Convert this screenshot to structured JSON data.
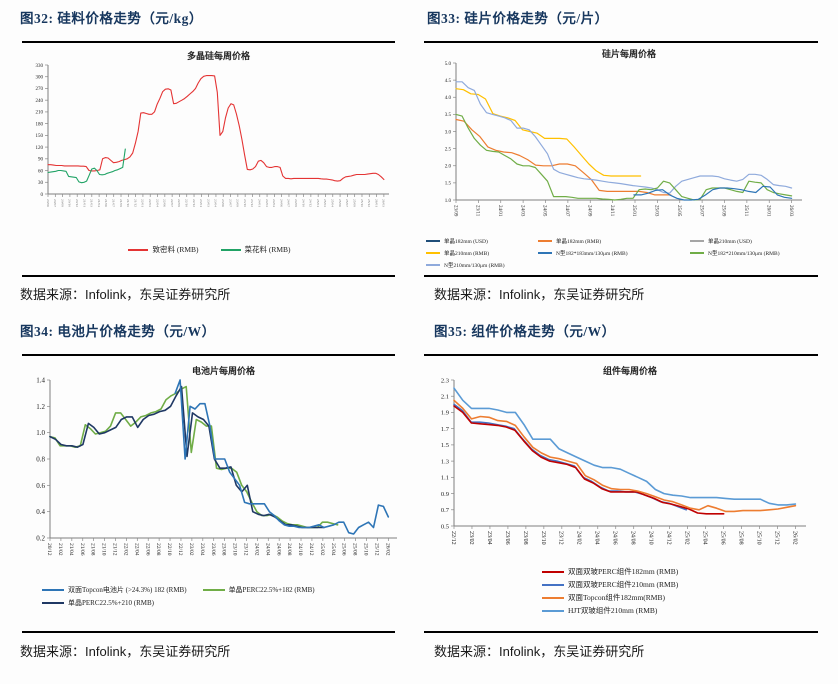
{
  "figures": [
    {
      "heading": "图32: 硅料价格走势（元/kg）",
      "source": {
        "prefix": "数据来源：",
        "brand": "Infolink",
        "suffix": "，东吴证券研究所"
      }
    },
    {
      "heading": "图33: 硅片价格走势（元/片）",
      "source": {
        "prefix": "数据来源：",
        "brand": "Infolink",
        "suffix": "，东吴证券研究所"
      }
    },
    {
      "heading": "图34: 电池片价格走势（元/W）",
      "source": {
        "prefix": "数据来源：",
        "brand": "Infolink",
        "suffix": "，东吴证券研究所"
      }
    },
    {
      "heading": "图35: 组件价格走势（元/W）",
      "source": {
        "prefix": "数据来源：",
        "brand": "Infolink",
        "suffix": "，东吴证券研究所"
      }
    }
  ],
  "colors": {
    "heading": "#17375E",
    "rule": "#000000",
    "axis": "#808080"
  },
  "chart_data": [
    {
      "type": "line",
      "title": "多晶硅每周价格",
      "ylim": [
        0,
        330
      ],
      "ystep": 30,
      "xlabels": [
        "20/06",
        "20/07",
        "20/09",
        "20/10",
        "20/12",
        "21/01",
        "21/03",
        "21/04",
        "21/06",
        "21/07",
        "21/09",
        "21/10",
        "21/12",
        "22/01",
        "22/03",
        "22/04",
        "22/06",
        "22/07",
        "22/09",
        "22/10",
        "22/12",
        "23/01",
        "23/03",
        "23/04",
        "23/06",
        "23/07",
        "23/09",
        "23/10",
        "23/12",
        "24/01",
        "24/03",
        "24/04",
        "24/06",
        "24/07",
        "24/09",
        "24/10",
        "24/12",
        "25/01",
        "25/03",
        "25/04",
        "25/06",
        "25/07",
        "25/09",
        "25/10",
        "25/12",
        "26/01",
        "26/03"
      ],
      "legend": [
        {
          "label": "致密料 (RMB)",
          "color": "#E43434"
        },
        {
          "label": "菜花料 (RMB)",
          "color": "#21A366"
        }
      ],
      "series": [
        {
          "name": "致密料 (RMB)",
          "color": "#E43434",
          "span": [
            0,
            1
          ],
          "values": [
            75,
            75,
            74,
            73,
            73,
            73,
            72,
            72,
            72,
            72,
            72,
            72,
            71,
            71,
            70,
            60,
            59,
            59,
            60,
            62,
            90,
            93,
            92,
            86,
            80,
            81,
            83,
            86,
            88,
            90,
            95,
            105,
            130,
            160,
            207,
            208,
            206,
            204,
            204,
            210,
            230,
            245,
            262,
            268,
            269,
            266,
            231,
            232,
            236,
            240,
            244,
            250,
            256,
            262,
            270,
            284,
            295,
            301,
            303,
            303,
            303,
            302,
            260,
            150,
            160,
            195,
            220,
            231,
            228,
            205,
            175,
            140,
            100,
            63,
            62,
            64,
            70,
            84,
            86,
            80,
            70,
            68,
            68,
            70,
            70,
            68,
            46,
            40,
            40,
            39,
            40,
            40,
            40,
            40,
            40,
            40,
            40,
            40,
            40,
            40,
            39,
            38,
            38,
            37,
            36,
            34,
            33,
            34,
            40,
            44,
            45,
            46,
            48,
            50,
            50,
            50,
            50,
            51,
            52,
            53,
            53,
            50,
            44,
            37
          ]
        },
        {
          "name": "菜花料 (RMB)",
          "color": "#21A366",
          "span": [
            0,
            0.23
          ],
          "values": [
            55,
            56,
            57,
            58,
            60,
            60,
            59,
            58,
            45,
            44,
            43,
            42,
            31,
            29,
            30,
            33,
            48,
            64,
            66,
            60,
            50,
            49,
            50,
            53,
            55,
            57,
            60,
            62,
            65,
            68,
            115
          ]
        }
      ]
    },
    {
      "type": "line",
      "title": "硅片每周价格",
      "ylim": [
        1.0,
        5.0
      ],
      "ystep": 0.5,
      "xlabels": [
        "23/09",
        "23/11",
        "24/01",
        "24/03",
        "24/05",
        "24/07",
        "24/09",
        "24/11",
        "25/01",
        "25/03",
        "25/05",
        "25/07",
        "25/09",
        "25/11",
        "26/01",
        "26/03"
      ],
      "legend": [
        {
          "label": "单晶182mm (USD)",
          "color": "#1F4E79"
        },
        {
          "label": "单晶182mm (RMB)",
          "color": "#ED7D31"
        },
        {
          "label": "单晶210mm (USD)",
          "color": "#A5A5A5"
        },
        {
          "label": "单晶210mm (RMB)",
          "color": "#FFC000"
        },
        {
          "label": "N型182*183mm/130μm (RMB)",
          "color": "#2E75B6"
        },
        {
          "label": "N型182*210mm/130μm (RMB)",
          "color": "#70AD47"
        },
        {
          "label": "N型210mm/130μm (RMB)",
          "color": "#8FAADC"
        }
      ],
      "series": [
        {
          "name": "单晶182mm (USD)",
          "color": "#1F4E79",
          "span": [
            0,
            1
          ],
          "values": []
        },
        {
          "name": "单晶210mm (USD)",
          "color": "#A5A5A5",
          "span": [
            0,
            1
          ],
          "values": []
        },
        {
          "name": "单晶210mm (RMB)",
          "color": "#FFC000",
          "span": [
            0,
            0.55
          ],
          "values": [
            4.25,
            4.22,
            4.1,
            4.08,
            3.95,
            3.52,
            3.45,
            3.4,
            3.32,
            3.05,
            3.0,
            2.95,
            2.8,
            2.8,
            2.8,
            2.78,
            2.55,
            2.3,
            2.05,
            1.85,
            1.72,
            1.7,
            1.7,
            1.7,
            1.7,
            1.7
          ]
        },
        {
          "name": "单晶182mm (RMB)",
          "color": "#ED7D31",
          "span": [
            0,
            0.64
          ],
          "values": [
            3.35,
            3.3,
            3.05,
            2.85,
            2.55,
            2.45,
            2.4,
            2.38,
            2.3,
            2.18,
            2.02,
            2.0,
            2.0,
            2.05,
            2.05,
            2.0,
            1.8,
            1.6,
            1.28,
            1.25,
            1.25,
            1.25,
            1.25,
            1.25,
            1.22,
            1.15,
            1.15,
            1.15
          ]
        },
        {
          "name": "N型210mm/130μm (RMB)",
          "color": "#8FAADC",
          "span": [
            0,
            1
          ],
          "values": [
            4.45,
            4.45,
            4.28,
            4.2,
            3.8,
            3.55,
            3.5,
            3.45,
            3.4,
            3.32,
            3.1,
            3.1,
            3.05,
            2.85,
            2.6,
            2.35,
            1.9,
            1.8,
            1.75,
            1.7,
            1.65,
            1.62,
            1.6,
            1.58,
            1.55,
            1.52,
            1.5,
            1.48,
            1.45,
            1.42,
            1.4,
            1.38,
            1.35,
            1.3,
            1.22,
            1.2,
            1.4,
            1.55,
            1.6,
            1.65,
            1.7,
            1.7,
            1.7,
            1.68,
            1.62,
            1.58,
            1.55,
            1.6,
            1.75,
            1.75,
            1.72,
            1.6,
            1.45,
            1.42,
            1.4,
            1.35
          ]
        },
        {
          "name": "N型182*210mm/130μm (RMB)",
          "color": "#70AD47",
          "span": [
            0,
            1
          ],
          "values": [
            3.5,
            3.45,
            3.1,
            2.8,
            2.6,
            2.45,
            2.42,
            2.4,
            2.3,
            2.2,
            2.05,
            2.0,
            2.0,
            1.95,
            1.75,
            1.55,
            1.1,
            1.1,
            1.1,
            1.08,
            1.05,
            1.05,
            1.05,
            1.05,
            1.03,
            1.02,
            1.0,
            1.02,
            1.05,
            1.05,
            1.3,
            1.32,
            1.3,
            1.35,
            1.55,
            1.5,
            1.3,
            1.1,
            1.05,
            1.0,
            1.02,
            1.3,
            1.35,
            1.35,
            1.35,
            1.3,
            1.25,
            1.22,
            1.55,
            1.52,
            1.5,
            1.3,
            1.22,
            1.18,
            1.15,
            1.12
          ]
        },
        {
          "name": "N型182*183mm/130μm (RMB)",
          "color": "#2E75B6",
          "span": [
            0.53,
            1
          ],
          "values": [
            1.15,
            1.15,
            1.2,
            1.28,
            1.3,
            1.15,
            1.05,
            1.0,
            1.0,
            1.02,
            1.15,
            1.3,
            1.35,
            1.35,
            1.33,
            1.3,
            1.25,
            1.22,
            1.4,
            1.38,
            1.15,
            1.08,
            1.05
          ]
        }
      ]
    },
    {
      "type": "line",
      "title": "电池片每周价格",
      "ylim": [
        0.2,
        1.4
      ],
      "ystep": 0.2,
      "xlabels": [
        "20/12",
        "21/02",
        "21/04",
        "21/06",
        "21/08",
        "21/10",
        "21/12",
        "22/02",
        "22/04",
        "22/06",
        "22/08",
        "22/10",
        "22/12",
        "23/02",
        "23/04",
        "23/06",
        "23/08",
        "23/10",
        "23/12",
        "24/02",
        "24/04",
        "24/06",
        "24/08",
        "24/10",
        "24/12",
        "25/02",
        "25/04",
        "25/06",
        "25/08",
        "25/10",
        "25/12",
        "26/02"
      ],
      "legend": [
        {
          "label": "双面Topcon电池片 (>24.3%) 182 (RMB)",
          "color": "#2E75B6"
        },
        {
          "label": "单晶PERC22.5%+182 (RMB)",
          "color": "#70AD47"
        },
        {
          "label": "单晶PERC22.5%+210 (RMB)",
          "color": "#1F3864"
        }
      ],
      "series": [
        {
          "name": "单晶PERC22.5%+182 (RMB)",
          "color": "#70AD47",
          "span": [
            0,
            0.85
          ],
          "values": [
            0.97,
            0.96,
            0.9,
            0.9,
            0.9,
            0.89,
            0.9,
            1.06,
            1.03,
            0.99,
            1.0,
            1.01,
            1.05,
            1.15,
            1.15,
            1.1,
            1.05,
            1.08,
            1.12,
            1.13,
            1.15,
            1.16,
            1.18,
            1.25,
            1.28,
            1.3,
            1.33,
            1.35,
            0.85,
            1.1,
            1.08,
            1.05,
            1.05,
            0.73,
            0.72,
            0.73,
            0.73,
            0.7,
            0.6,
            0.55,
            0.47,
            0.4,
            0.37,
            0.37,
            0.38,
            0.36,
            0.33,
            0.31,
            0.3,
            0.3,
            0.29,
            0.28,
            0.28,
            0.28,
            0.32,
            0.32,
            0.31,
            0.3
          ]
        },
        {
          "name": "单晶PERC22.5%+210 (RMB)",
          "color": "#1F3864",
          "span": [
            0,
            0.81
          ],
          "values": [
            0.97,
            0.95,
            0.91,
            0.9,
            0.9,
            0.89,
            0.91,
            1.07,
            1.04,
            0.99,
            1.0,
            1.02,
            1.04,
            1.1,
            1.12,
            1.12,
            1.04,
            1.1,
            1.13,
            1.14,
            1.16,
            1.17,
            1.2,
            1.28,
            1.35,
            0.82,
            1.15,
            1.12,
            1.1,
            1.05,
            0.8,
            0.73,
            0.73,
            0.74,
            0.6,
            0.55,
            0.6,
            0.4,
            0.38,
            0.37,
            0.38,
            0.36,
            0.33,
            0.3,
            0.3,
            0.29,
            0.28,
            0.28,
            0.28,
            0.28,
            0.28
          ]
        },
        {
          "name": "双面Topcon电池片 (>24.3%) 182 (RMB)",
          "color": "#2E75B6",
          "span": [
            0.37,
            1
          ],
          "values": [
            1.3,
            1.4,
            0.8,
            1.2,
            1.18,
            1.22,
            1.22,
            1.05,
            0.8,
            0.8,
            0.8,
            0.7,
            0.65,
            0.6,
            0.47,
            0.46,
            0.46,
            0.46,
            0.46,
            0.4,
            0.37,
            0.33,
            0.3,
            0.29,
            0.29,
            0.28,
            0.28,
            0.28,
            0.29,
            0.3,
            0.28,
            0.29,
            0.3,
            0.32,
            0.32,
            0.24,
            0.23,
            0.28,
            0.3,
            0.32,
            0.28,
            0.45,
            0.44,
            0.36
          ]
        }
      ]
    },
    {
      "type": "line",
      "title": "组件每周价格",
      "ylim": [
        0.5,
        2.3
      ],
      "ystep": 0.2,
      "xlabels": [
        "22/12",
        "23/02",
        "23/04",
        "23/06",
        "23/08",
        "23/10",
        "23/12",
        "24/02",
        "24/04",
        "24/06",
        "24/08",
        "24/10",
        "24/12",
        "25/02",
        "25/04",
        "25/06",
        "25/08",
        "25/10",
        "25/12",
        "26/02"
      ],
      "legend": [
        {
          "label": "双面双玻PERC组件182mm (RMB)",
          "color": "#C00000"
        },
        {
          "label": "双面双玻PERC组件210mm (RMB)",
          "color": "#4472C4"
        },
        {
          "label": "双面Topcon组件182mm(RMB)",
          "color": "#ED7D31"
        },
        {
          "label": "HJT双玻组件210mm (RMB)",
          "color": "#5B9BD5"
        }
      ],
      "series": [
        {
          "name": "HJT双玻组件210mm (RMB)",
          "color": "#5B9BD5",
          "span": [
            0,
            1
          ],
          "values": [
            2.2,
            2.05,
            1.95,
            1.95,
            1.95,
            1.93,
            1.9,
            1.9,
            1.75,
            1.57,
            1.57,
            1.57,
            1.45,
            1.4,
            1.35,
            1.3,
            1.25,
            1.22,
            1.22,
            1.2,
            1.15,
            1.1,
            1.05,
            0.95,
            0.9,
            0.88,
            0.87,
            0.85,
            0.85,
            0.85,
            0.85,
            0.84,
            0.83,
            0.83,
            0.83,
            0.83,
            0.78,
            0.76,
            0.76,
            0.77
          ]
        },
        {
          "name": "双面双玻PERC组件210mm (RMB)",
          "color": "#4472C4",
          "span": [
            0,
            0.68
          ],
          "values": [
            2.0,
            1.92,
            1.78,
            1.78,
            1.77,
            1.75,
            1.73,
            1.7,
            1.57,
            1.45,
            1.37,
            1.32,
            1.3,
            1.27,
            1.24,
            1.1,
            1.05,
            0.98,
            0.93,
            0.93,
            0.92,
            0.92,
            0.89,
            0.85,
            0.8,
            0.78,
            0.74,
            0.7
          ]
        },
        {
          "name": "双面双玻PERC组件182mm (RMB)",
          "color": "#C00000",
          "span": [
            0,
            0.79
          ],
          "values": [
            1.98,
            1.9,
            1.77,
            1.76,
            1.75,
            1.74,
            1.72,
            1.68,
            1.55,
            1.43,
            1.35,
            1.3,
            1.28,
            1.26,
            1.22,
            1.08,
            1.03,
            0.96,
            0.92,
            0.92,
            0.92,
            0.92,
            0.88,
            0.84,
            0.79,
            0.77,
            0.74,
            0.71,
            0.66,
            0.65,
            0.65,
            0.65
          ]
        },
        {
          "name": "双面Topcon组件182mm(RMB)",
          "color": "#ED7D31",
          "span": [
            0,
            1
          ],
          "values": [
            2.05,
            1.95,
            1.82,
            1.85,
            1.84,
            1.8,
            1.79,
            1.74,
            1.6,
            1.47,
            1.4,
            1.35,
            1.33,
            1.3,
            1.27,
            1.12,
            1.07,
            1.0,
            0.96,
            0.95,
            0.95,
            0.93,
            0.9,
            0.86,
            0.82,
            0.8,
            0.76,
            0.72,
            0.7,
            0.75,
            0.72,
            0.68,
            0.68,
            0.69,
            0.69,
            0.69,
            0.7,
            0.71,
            0.73,
            0.75
          ]
        }
      ]
    }
  ]
}
